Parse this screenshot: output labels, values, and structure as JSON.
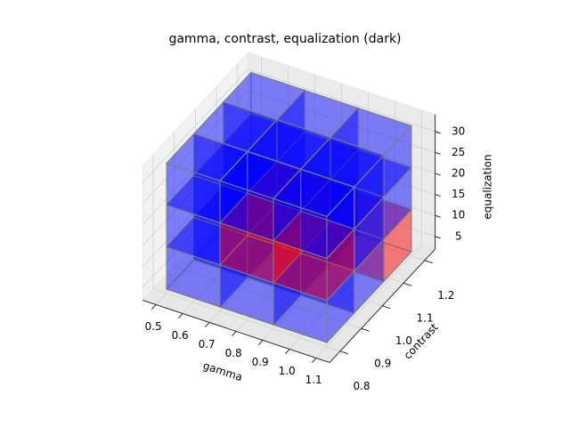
{
  "chart_data": {
    "type": "voxel3d",
    "title": "gamma, contrast, equalization (dark)",
    "xlabel": "gamma",
    "ylabel": "contrast",
    "zlabel": "equalization",
    "xlim": [
      0.45,
      1.15
    ],
    "ylim": [
      0.75,
      1.25
    ],
    "zlim": [
      2,
      34
    ],
    "xticks": [
      0.5,
      0.6,
      0.7,
      0.8,
      0.9,
      {
        "value": 1.0,
        "label": "1.0"
      },
      1.1
    ],
    "yticks": [
      0.8,
      0.9,
      {
        "value": 1.0,
        "label": "1.0"
      },
      1.1,
      1.2
    ],
    "zticks": [
      5,
      10,
      15,
      20,
      25,
      30
    ],
    "grid": true,
    "edge_color": "#808080",
    "voxels": [
      {
        "x": [
          0.5,
          0.7
        ],
        "y": [
          0.8,
          0.93
        ],
        "z": [
          3,
          13
        ],
        "color": "#0000ff"
      },
      {
        "x": [
          0.5,
          0.7
        ],
        "y": [
          0.8,
          0.93
        ],
        "z": [
          13,
          23
        ],
        "color": "#0000ff"
      },
      {
        "x": [
          0.5,
          0.7
        ],
        "y": [
          0.8,
          0.93
        ],
        "z": [
          23,
          33
        ],
        "color": "#0000ff"
      },
      {
        "x": [
          0.5,
          0.7
        ],
        "y": [
          0.93,
          1.07
        ],
        "z": [
          3,
          13
        ],
        "color": "#0000ff"
      },
      {
        "x": [
          0.5,
          0.7
        ],
        "y": [
          0.93,
          1.07
        ],
        "z": [
          13,
          23
        ],
        "color": "#0000ff"
      },
      {
        "x": [
          0.5,
          0.7
        ],
        "y": [
          0.93,
          1.07
        ],
        "z": [
          23,
          33
        ],
        "color": "#0000ff"
      },
      {
        "x": [
          0.5,
          0.7
        ],
        "y": [
          1.07,
          1.2
        ],
        "z": [
          3,
          13
        ],
        "color": "#0000ff"
      },
      {
        "x": [
          0.5,
          0.7
        ],
        "y": [
          1.07,
          1.2
        ],
        "z": [
          13,
          23
        ],
        "color": "#0000ff"
      },
      {
        "x": [
          0.5,
          0.7
        ],
        "y": [
          1.07,
          1.2
        ],
        "z": [
          23,
          33
        ],
        "color": "#0000ff"
      },
      {
        "x": [
          0.7,
          0.9
        ],
        "y": [
          0.8,
          0.93
        ],
        "z": [
          3,
          13
        ],
        "color": "#0000ff"
      },
      {
        "x": [
          0.7,
          0.9
        ],
        "y": [
          0.8,
          0.93
        ],
        "z": [
          13,
          23
        ],
        "color": "#ff0000"
      },
      {
        "x": [
          0.7,
          0.9
        ],
        "y": [
          0.8,
          0.93
        ],
        "z": [
          23,
          33
        ],
        "color": "#0000ff"
      },
      {
        "x": [
          0.7,
          0.9
        ],
        "y": [
          0.93,
          1.07
        ],
        "z": [
          3,
          13
        ],
        "color": "#0000ff"
      },
      {
        "x": [
          0.7,
          0.9
        ],
        "y": [
          0.93,
          1.07
        ],
        "z": [
          13,
          23
        ],
        "color": "#ff0000"
      },
      {
        "x": [
          0.7,
          0.9
        ],
        "y": [
          0.93,
          1.07
        ],
        "z": [
          23,
          33
        ],
        "color": "#0000ff"
      },
      {
        "x": [
          0.7,
          0.9
        ],
        "y": [
          1.07,
          1.2
        ],
        "z": [
          3,
          13
        ],
        "color": "#0000ff"
      },
      {
        "x": [
          0.7,
          0.9
        ],
        "y": [
          1.07,
          1.2
        ],
        "z": [
          13,
          23
        ],
        "color": "#0000ff"
      },
      {
        "x": [
          0.7,
          0.9
        ],
        "y": [
          1.07,
          1.2
        ],
        "z": [
          23,
          33
        ],
        "color": "#0000ff"
      },
      {
        "x": [
          0.9,
          1.1
        ],
        "y": [
          0.8,
          0.93
        ],
        "z": [
          3,
          13
        ],
        "color": "#0000ff"
      },
      {
        "x": [
          0.9,
          1.1
        ],
        "y": [
          0.8,
          0.93
        ],
        "z": [
          13,
          23
        ],
        "color": "#ff0000"
      },
      {
        "x": [
          0.9,
          1.1
        ],
        "y": [
          0.8,
          0.93
        ],
        "z": [
          23,
          33
        ],
        "color": "#0000ff"
      },
      {
        "x": [
          0.9,
          1.1
        ],
        "y": [
          0.93,
          1.07
        ],
        "z": [
          3,
          13
        ],
        "color": "#0000ff"
      },
      {
        "x": [
          0.9,
          1.1
        ],
        "y": [
          0.93,
          1.07
        ],
        "z": [
          13,
          23
        ],
        "color": "#0000ff"
      },
      {
        "x": [
          0.9,
          1.1
        ],
        "y": [
          0.93,
          1.07
        ],
        "z": [
          23,
          33
        ],
        "color": "#0000ff"
      },
      {
        "x": [
          0.9,
          1.1
        ],
        "y": [
          1.07,
          1.2
        ],
        "z": [
          3,
          13
        ],
        "color": "#ff0000"
      },
      {
        "x": [
          0.9,
          1.1
        ],
        "y": [
          1.07,
          1.2
        ],
        "z": [
          13,
          23
        ],
        "color": "#0000ff"
      },
      {
        "x": [
          0.9,
          1.1
        ],
        "y": [
          1.07,
          1.2
        ],
        "z": [
          23,
          33
        ],
        "color": "#0000ff"
      }
    ]
  }
}
